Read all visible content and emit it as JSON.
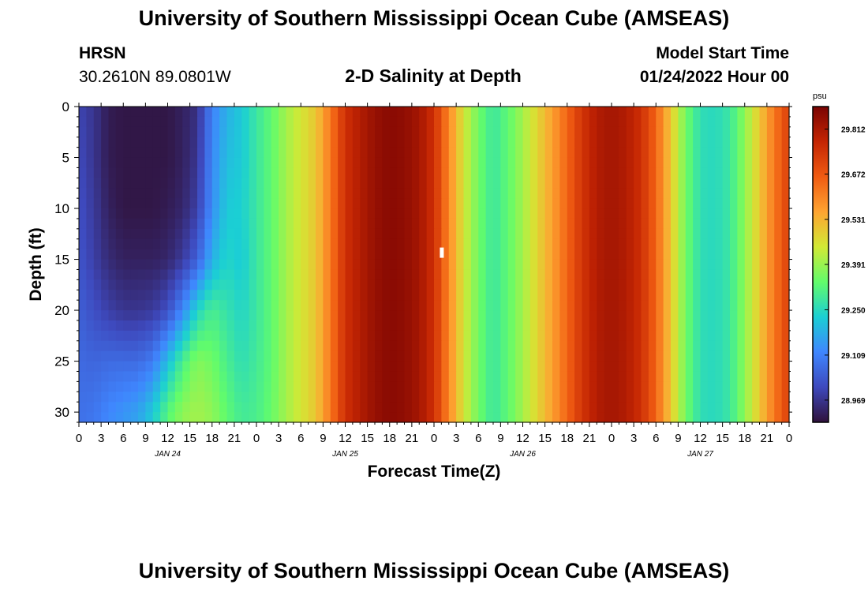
{
  "page": {
    "title": "University of Southern Mississippi Ocean Cube (AMSEAS)",
    "title_repeat": "University of Southern Mississippi Ocean Cube (AMSEAS)",
    "station_name": "HRSN",
    "station_coords": "30.2610N  89.0801W",
    "subtitle": "2-D Salinity at Depth",
    "model_start_label": "Model Start Time",
    "model_start_value": "01/24/2022 Hour 00"
  },
  "chart_data": {
    "type": "heatmap",
    "title": "2-D Salinity at Depth",
    "xlabel": "Forecast Time(Z)",
    "ylabel": "Depth (ft)",
    "x_hours_range": [
      0,
      96
    ],
    "xtick_hours": [
      0,
      3,
      6,
      9,
      12,
      15,
      18,
      21,
      24,
      27,
      30,
      33,
      36,
      39,
      42,
      45,
      48,
      51,
      54,
      57,
      60,
      63,
      66,
      69,
      72,
      75,
      78,
      81,
      84,
      87,
      90,
      93,
      96
    ],
    "xtick_labels": [
      "0",
      "3",
      "6",
      "9",
      "12",
      "15",
      "18",
      "21",
      "0",
      "3",
      "6",
      "9",
      "12",
      "15",
      "18",
      "21",
      "0",
      "3",
      "6",
      "9",
      "12",
      "15",
      "18",
      "21",
      "0",
      "3",
      "6",
      "9",
      "12",
      "15",
      "18",
      "21",
      "0"
    ],
    "date_labels": [
      {
        "label": "JAN 24",
        "hour": 12
      },
      {
        "label": "JAN 25",
        "hour": 36
      },
      {
        "label": "JAN 26",
        "hour": 60
      },
      {
        "label": "JAN 27",
        "hour": 84
      }
    ],
    "ylim": [
      0,
      31
    ],
    "ytick_values": [
      0,
      5,
      10,
      15,
      20,
      25,
      30
    ],
    "ytick_labels": [
      "0",
      "5",
      "10",
      "15",
      "20",
      "25",
      "30"
    ],
    "y_inverted": true,
    "colorbar": {
      "unit": "psu",
      "min": 28.9,
      "max": 29.882,
      "tick_values": [
        28.969,
        29.109,
        29.25,
        29.391,
        29.531,
        29.672,
        29.812
      ],
      "tick_labels": [
        "28.969",
        "29.109",
        "29.250",
        "29.391",
        "29.531",
        "29.672",
        "29.812"
      ],
      "colors": [
        "#30123b",
        "#3e49bd",
        "#3f86fe",
        "#1bcfd4",
        "#62fc6b",
        "#d2e935",
        "#fea431",
        "#f05b12",
        "#c42503",
        "#7a0403"
      ]
    },
    "depth_rows": [
      0,
      5,
      10,
      15,
      20,
      25,
      30
    ],
    "time_hours": [
      0,
      2,
      4,
      6,
      8,
      10,
      12,
      14,
      16,
      18,
      20,
      22,
      24,
      26,
      28,
      30,
      32,
      34,
      36,
      38,
      40,
      42,
      44,
      46,
      48,
      50,
      52,
      54,
      56,
      58,
      60,
      62,
      64,
      66,
      68,
      70,
      72,
      74,
      76,
      78,
      80,
      82,
      84,
      86,
      88,
      90,
      92,
      94,
      96
    ],
    "values": [
      [
        29.0,
        28.97,
        28.92,
        28.91,
        28.91,
        28.91,
        28.91,
        28.93,
        28.96,
        29.11,
        29.18,
        29.22,
        29.28,
        29.33,
        29.4,
        29.45,
        29.5,
        29.62,
        29.75,
        29.8,
        29.84,
        29.86,
        29.85,
        29.82,
        29.75,
        29.6,
        29.45,
        29.35,
        29.28,
        29.33,
        29.4,
        29.48,
        29.56,
        29.65,
        29.74,
        29.8,
        29.82,
        29.8,
        29.75,
        29.65,
        29.5,
        29.35,
        29.26,
        29.25,
        29.28,
        29.38,
        29.5,
        29.62,
        29.72
      ],
      [
        29.01,
        28.97,
        28.92,
        28.91,
        28.91,
        28.91,
        28.91,
        28.93,
        28.97,
        29.12,
        29.2,
        29.22,
        29.28,
        29.33,
        29.4,
        29.45,
        29.5,
        29.62,
        29.75,
        29.8,
        29.84,
        29.86,
        29.85,
        29.82,
        29.75,
        29.6,
        29.45,
        29.35,
        29.28,
        29.33,
        29.4,
        29.48,
        29.56,
        29.65,
        29.74,
        29.8,
        29.82,
        29.8,
        29.75,
        29.65,
        29.5,
        29.35,
        29.26,
        29.25,
        29.28,
        29.38,
        29.5,
        29.62,
        29.72
      ],
      [
        29.02,
        28.98,
        28.93,
        28.91,
        28.91,
        28.91,
        28.92,
        28.94,
        28.99,
        29.13,
        29.22,
        29.23,
        29.28,
        29.33,
        29.4,
        29.45,
        29.5,
        29.62,
        29.75,
        29.8,
        29.84,
        29.86,
        29.85,
        29.82,
        29.75,
        29.6,
        29.45,
        29.35,
        29.28,
        29.33,
        29.4,
        29.48,
        29.56,
        29.65,
        29.74,
        29.8,
        29.82,
        29.8,
        29.75,
        29.65,
        29.5,
        29.35,
        29.26,
        29.25,
        29.28,
        29.38,
        29.5,
        29.62,
        29.72
      ],
      [
        29.03,
        28.99,
        28.95,
        28.93,
        28.93,
        28.93,
        28.94,
        28.98,
        29.05,
        29.18,
        29.24,
        29.22,
        29.28,
        29.33,
        29.4,
        29.45,
        29.5,
        29.62,
        29.75,
        29.8,
        29.84,
        29.86,
        29.85,
        29.82,
        29.75,
        29.6,
        29.45,
        29.35,
        29.28,
        29.33,
        29.4,
        29.48,
        29.56,
        29.65,
        29.74,
        29.8,
        29.82,
        29.8,
        29.75,
        29.65,
        29.5,
        29.35,
        29.26,
        29.25,
        29.28,
        29.38,
        29.5,
        29.62,
        29.72
      ],
      [
        29.05,
        29.02,
        28.99,
        28.97,
        28.97,
        28.98,
        29.02,
        29.12,
        29.24,
        29.3,
        29.27,
        29.24,
        29.28,
        29.33,
        29.4,
        29.45,
        29.5,
        29.62,
        29.75,
        29.8,
        29.84,
        29.86,
        29.85,
        29.82,
        29.75,
        29.6,
        29.45,
        29.35,
        29.28,
        29.33,
        29.4,
        29.48,
        29.56,
        29.65,
        29.74,
        29.8,
        29.82,
        29.8,
        29.75,
        29.65,
        29.5,
        29.35,
        29.26,
        29.25,
        29.28,
        29.38,
        29.5,
        29.62,
        29.72
      ],
      [
        29.07,
        29.06,
        29.07,
        29.07,
        29.07,
        29.1,
        29.2,
        29.3,
        29.37,
        29.35,
        29.3,
        29.26,
        29.29,
        29.33,
        29.4,
        29.45,
        29.5,
        29.62,
        29.75,
        29.8,
        29.84,
        29.86,
        29.85,
        29.82,
        29.75,
        29.6,
        29.45,
        29.35,
        29.28,
        29.33,
        29.4,
        29.48,
        29.56,
        29.65,
        29.74,
        29.8,
        29.82,
        29.8,
        29.75,
        29.65,
        29.5,
        29.35,
        29.26,
        29.25,
        29.28,
        29.38,
        29.5,
        29.62,
        29.72
      ],
      [
        29.08,
        29.09,
        29.12,
        29.14,
        29.16,
        29.22,
        29.32,
        29.38,
        29.4,
        29.38,
        29.33,
        29.29,
        29.3,
        29.34,
        29.4,
        29.45,
        29.5,
        29.62,
        29.75,
        29.8,
        29.84,
        29.86,
        29.85,
        29.82,
        29.75,
        29.6,
        29.45,
        29.35,
        29.28,
        29.33,
        29.4,
        29.48,
        29.56,
        29.65,
        29.74,
        29.8,
        29.82,
        29.8,
        29.75,
        29.65,
        29.5,
        29.35,
        29.26,
        29.25,
        29.28,
        29.38,
        29.5,
        29.62,
        29.72
      ]
    ],
    "missing_cell": {
      "hour": 49,
      "depth": 14
    }
  }
}
